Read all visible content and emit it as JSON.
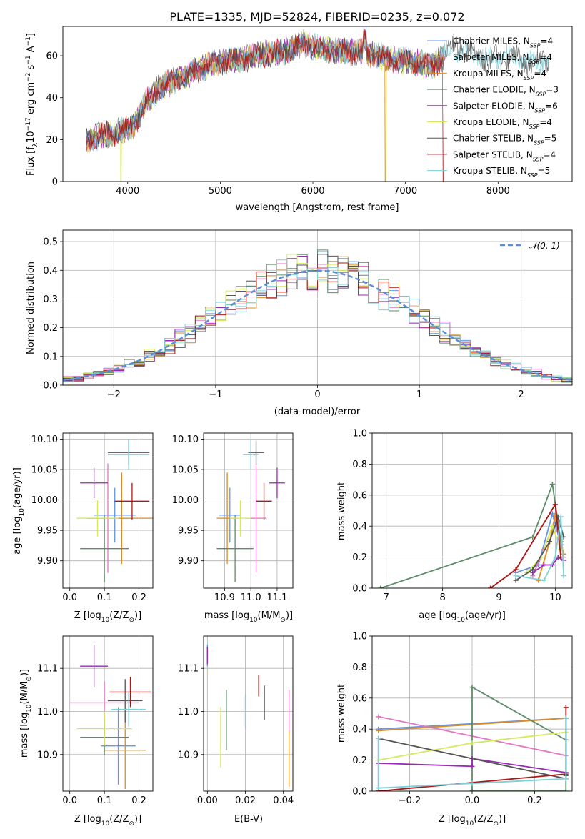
{
  "colors": [
    "#6495ED",
    "#E377C2",
    "#D98C28",
    "#5E8C6A",
    "#9A28B8",
    "#D5EA5A",
    "#555555",
    "#B01515",
    "#7FD0D8"
  ],
  "chart_data": [
    {
      "id": "spectrum",
      "type": "line",
      "title": "PLATE=1335, MJD=52824, FIBERID=0235, z=0.072",
      "xlabel": "wavelength [Angstrom, rest frame]",
      "ylabel": "Flux [f_λ 10^-17 erg cm^-2 s^-1 A^-1]",
      "xlim": [
        3300,
        8800
      ],
      "ylim": [
        0,
        74
      ],
      "xticks": [
        "4000",
        "5000",
        "6000",
        "7000",
        "8000"
      ],
      "yticks": [
        "0",
        "20",
        "40",
        "60"
      ],
      "continuum_anchor_points": {
        "x": [
          3550,
          3700,
          3850,
          3950,
          4050,
          4200,
          4350,
          4500,
          4700,
          4900,
          5100,
          5300,
          5500,
          5700,
          5900,
          6100,
          6300,
          6500,
          6700,
          6900,
          7100,
          7300,
          7500,
          7700,
          7900,
          8100,
          8300,
          8500
        ],
        "y": [
          20,
          22,
          23,
          24,
          26,
          38,
          45,
          48,
          52,
          56,
          58,
          59,
          61,
          62,
          66,
          63,
          62,
          62,
          60,
          58,
          57,
          55,
          64,
          62,
          58,
          60,
          57,
          58
        ]
      },
      "legend": {
        "placement": "upper-right",
        "entries": [
          {
            "label": "Chabrier MILES, N",
            "sub": "SSP",
            "suffix": "=4"
          },
          {
            "label": "Salpeter MILES, N",
            "sub": "SSP",
            "suffix": "=4"
          },
          {
            "label": "Kroupa MILES, N",
            "sub": "SSP",
            "suffix": "=4"
          },
          {
            "label": "Chabrier ELODIE, N",
            "sub": "SSP",
            "suffix": "=3"
          },
          {
            "label": "Salpeter ELODIE, N",
            "sub": "SSP",
            "suffix": "=6"
          },
          {
            "label": "Kroupa ELODIE, N",
            "sub": "SSP",
            "suffix": "=4"
          },
          {
            "label": "Chabrier STELIB, N",
            "sub": "SSP",
            "suffix": "=5"
          },
          {
            "label": "Salpeter STELIB, N",
            "sub": "SSP",
            "suffix": "=4"
          },
          {
            "label": "Kroupa STELIB, N",
            "sub": "SSP",
            "suffix": "=5"
          }
        ]
      }
    },
    {
      "id": "residuals",
      "type": "line",
      "xlabel": "(data-model)/error",
      "ylabel": "Normed distribution",
      "xlim": [
        -2.5,
        2.5
      ],
      "ylim": [
        0,
        0.54
      ],
      "xticks": [
        "−2",
        "−1",
        "0",
        "1",
        "2"
      ],
      "yticks": [
        "0.0",
        "0.1",
        "0.2",
        "0.3",
        "0.4",
        "0.5"
      ],
      "grid": true,
      "legend": {
        "placement": "upper-right",
        "entry": "𝒩(0, 1)"
      },
      "gaussian": {
        "mean": 0,
        "sigma": 1,
        "color": "#5B8DD6",
        "style": "dashed"
      }
    },
    {
      "id": "age-vs-Z",
      "type": "scatter",
      "xlabel": "Z [log10(Z/Z⊙)]",
      "ylabel": "age [log10(age/yr)]",
      "xlim": [
        -0.02,
        0.24
      ],
      "ylim": [
        9.855,
        10.11
      ],
      "xticks": [
        "0.0",
        "0.1",
        "0.2"
      ],
      "yticks": [
        "9.90",
        "9.95",
        "10.00",
        "10.05",
        "10.10"
      ],
      "points": [
        {
          "x": 0.13,
          "y": 9.975,
          "xerr": 0.06,
          "yerr": 0.045
        },
        {
          "x": 0.11,
          "y": 9.97,
          "xerr": 0.06,
          "yerr": 0.09
        },
        {
          "x": 0.15,
          "y": 9.97,
          "xerr": 0.1,
          "yerr": 0.075
        },
        {
          "x": 0.1,
          "y": 9.92,
          "xerr": 0.07,
          "yerr": 0.055
        },
        {
          "x": 0.07,
          "y": 10.028,
          "xerr": 0.04,
          "yerr": 0.025
        },
        {
          "x": 0.08,
          "y": 9.97,
          "xerr": 0.06,
          "yerr": 0.03
        },
        {
          "x": 0.17,
          "y": 10.078,
          "xerr": 0.06,
          "yerr": 0.02
        },
        {
          "x": 0.18,
          "y": 9.998,
          "xerr": 0.05,
          "yerr": 0.03
        },
        {
          "x": 0.17,
          "y": 10.075,
          "xerr": 0.06,
          "yerr": 0.025
        }
      ]
    },
    {
      "id": "age-vs-mass",
      "type": "scatter",
      "xlabel": "mass [log10(M/M⊙)]",
      "xlim": [
        10.82,
        11.16
      ],
      "ylim": [
        9.855,
        10.11
      ],
      "xticks": [
        "10.9",
        "11.0",
        "11.1"
      ],
      "yticks": [
        "9.90",
        "9.95",
        "10.00",
        "10.05",
        "10.10"
      ],
      "points": [
        {
          "x": 10.92,
          "y": 9.975,
          "xerr": 0.04,
          "yerr": 0.045
        },
        {
          "x": 11.02,
          "y": 9.97,
          "xerr": 0.04,
          "yerr": 0.09
        },
        {
          "x": 10.91,
          "y": 9.97,
          "xerr": 0.04,
          "yerr": 0.075
        },
        {
          "x": 10.94,
          "y": 9.92,
          "xerr": 0.07,
          "yerr": 0.055
        },
        {
          "x": 11.1,
          "y": 10.028,
          "xerr": 0.03,
          "yerr": 0.025
        },
        {
          "x": 10.96,
          "y": 9.97,
          "xerr": 0.04,
          "yerr": 0.03
        },
        {
          "x": 11.02,
          "y": 10.078,
          "xerr": 0.03,
          "yerr": 0.02
        },
        {
          "x": 11.05,
          "y": 9.998,
          "xerr": 0.03,
          "yerr": 0.03
        },
        {
          "x": 11.0,
          "y": 10.075,
          "xerr": 0.03,
          "yerr": 0.025
        }
      ]
    },
    {
      "id": "weight-vs-age",
      "type": "line",
      "xlabel": "age  [log10(age/yr)]",
      "ylabel": "mass weight",
      "xlim": [
        6.75,
        10.3
      ],
      "ylim": [
        0,
        1
      ],
      "xticks": [
        "7",
        "8",
        "9",
        "10"
      ],
      "yticks": [
        "0.0",
        "0.2",
        "0.4",
        "0.6",
        "0.8",
        "1.0"
      ],
      "series": [
        {
          "x": [
            9.3,
            9.7,
            9.95,
            10.1
          ],
          "y": [
            0.1,
            0.15,
            0.48,
            0.28
          ]
        },
        {
          "x": [
            9.6,
            9.8,
            10.0,
            10.15
          ],
          "y": [
            0.08,
            0.25,
            0.45,
            0.2
          ]
        },
        {
          "x": [
            9.7,
            9.9,
            10.0,
            10.15
          ],
          "y": [
            0.05,
            0.3,
            0.47,
            0.22
          ]
        },
        {
          "x": [
            6.9,
            9.6,
            9.95,
            10.1
          ],
          "y": [
            0.0,
            0.33,
            0.67,
            0.3
          ]
        },
        {
          "x": [
            9.6,
            9.8,
            9.95,
            10.05,
            10.15
          ],
          "y": [
            0.1,
            0.15,
            0.15,
            0.2,
            0.18
          ]
        },
        {
          "x": [
            9.5,
            9.75,
            9.95,
            10.1
          ],
          "y": [
            0.1,
            0.2,
            0.4,
            0.25
          ]
        },
        {
          "x": [
            9.3,
            9.6,
            9.9,
            10.05,
            10.15
          ],
          "y": [
            0.05,
            0.12,
            0.3,
            0.46,
            0.33
          ]
        },
        {
          "x": [
            8.85,
            9.3,
            10.0,
            10.1
          ],
          "y": [
            0.0,
            0.12,
            0.54,
            0.2
          ]
        },
        {
          "x": [
            9.3,
            9.8,
            10.0,
            10.1,
            10.15
          ],
          "y": [
            0.08,
            0.05,
            0.2,
            0.46,
            0.08
          ]
        }
      ]
    },
    {
      "id": "mass-vs-Z",
      "type": "scatter",
      "xlabel": "Z [log10(Z/Z⊙)]",
      "ylabel": "mass [log10(M/M⊙)]",
      "xlim": [
        -0.02,
        0.24
      ],
      "ylim": [
        10.815,
        11.175
      ],
      "xticks": [
        "0.0",
        "0.1",
        "0.2"
      ],
      "yticks": [
        "10.9",
        "11.0",
        "11.1"
      ],
      "points": [
        {
          "x": 0.14,
          "y": 10.92,
          "xerr": 0.05,
          "yerr": 0.09
        },
        {
          "x": 0.1,
          "y": 11.02,
          "xerr": 0.1,
          "yerr": 0.05
        },
        {
          "x": 0.16,
          "y": 10.91,
          "xerr": 0.06,
          "yerr": 0.09
        },
        {
          "x": 0.1,
          "y": 10.94,
          "xerr": 0.07,
          "yerr": 0.04
        },
        {
          "x": 0.07,
          "y": 11.105,
          "xerr": 0.04,
          "yerr": 0.05
        },
        {
          "x": 0.1,
          "y": 10.96,
          "xerr": 0.08,
          "yerr": 0.04
        },
        {
          "x": 0.16,
          "y": 11.025,
          "xerr": 0.05,
          "yerr": 0.05
        },
        {
          "x": 0.175,
          "y": 11.045,
          "xerr": 0.06,
          "yerr": 0.035
        },
        {
          "x": 0.17,
          "y": 11.005,
          "xerr": 0.05,
          "yerr": 0.04
        }
      ]
    },
    {
      "id": "mass-vs-EBV",
      "type": "scatter",
      "xlabel": "E(B-V)",
      "xlim": [
        -0.002,
        0.045
      ],
      "ylim": [
        10.815,
        11.175
      ],
      "xticks": [
        "0.00",
        "0.02",
        "0.04"
      ],
      "yticks": [
        "10.9",
        "11.0",
        "11.1"
      ],
      "points": [
        {
          "x": 0.0,
          "y": 11.13,
          "yerr": 0.025
        },
        {
          "x": 0.043,
          "y": 11.0,
          "yerr": 0.05
        },
        {
          "x": 0.043,
          "y": 10.89,
          "yerr": 0.065
        },
        {
          "x": 0.01,
          "y": 10.98,
          "yerr": 0.07
        },
        {
          "x": 0.0,
          "y": 11.13,
          "yerr": 0.02
        },
        {
          "x": 0.007,
          "y": 10.94,
          "yerr": 0.07
        },
        {
          "x": 0.03,
          "y": 11.02,
          "yerr": 0.04
        },
        {
          "x": 0.027,
          "y": 11.06,
          "yerr": 0.025
        },
        {
          "x": 0.02,
          "y": 11.0,
          "yerr": 0.04
        }
      ]
    },
    {
      "id": "weight-vs-Z",
      "type": "line",
      "xlabel": "Z [log10(Z/Z⊙)]",
      "ylabel": "mass weight",
      "xlim": [
        -0.32,
        0.32
      ],
      "ylim": [
        0,
        1
      ],
      "xticks": [
        "−0.2",
        "0.0",
        "0.2"
      ],
      "yticks": [
        "0.0",
        "0.2",
        "0.4",
        "0.6",
        "0.8",
        "1.0"
      ],
      "series": [
        {
          "x": [
            -0.3,
            0.3
          ],
          "y": [
            0.4,
            0.47
          ]
        },
        {
          "x": [
            -0.3,
            0.3
          ],
          "y": [
            0.48,
            0.23
          ]
        },
        {
          "x": [
            -0.3,
            0.3
          ],
          "y": [
            0.39,
            0.47
          ]
        },
        {
          "x": [
            0.0,
            0.0,
            0.3,
            0.3,
            0.0
          ],
          "y": [
            0.0,
            0.67,
            0.33,
            0.0,
            0.0
          ]
        },
        {
          "x": [
            -0.3,
            0.0,
            0.0,
            0.3
          ],
          "y": [
            0.18,
            0.16,
            0.21,
            0.12
          ]
        },
        {
          "x": [
            -0.3,
            0.0,
            0.3
          ],
          "y": [
            0.2,
            0.31,
            0.38
          ]
        },
        {
          "x": [
            -0.3,
            -0.3,
            0.3,
            0.3
          ],
          "y": [
            0.0,
            0.34,
            0.08,
            0.1
          ]
        },
        {
          "x": [
            -0.3,
            0.3,
            0.3
          ],
          "y": [
            0.0,
            0.11,
            0.54
          ]
        },
        {
          "x": [
            -0.3,
            -0.3,
            0.0,
            0.3,
            0.3
          ],
          "y": [
            0.34,
            0.02,
            0.05,
            0.08,
            0.47
          ]
        }
      ]
    }
  ]
}
